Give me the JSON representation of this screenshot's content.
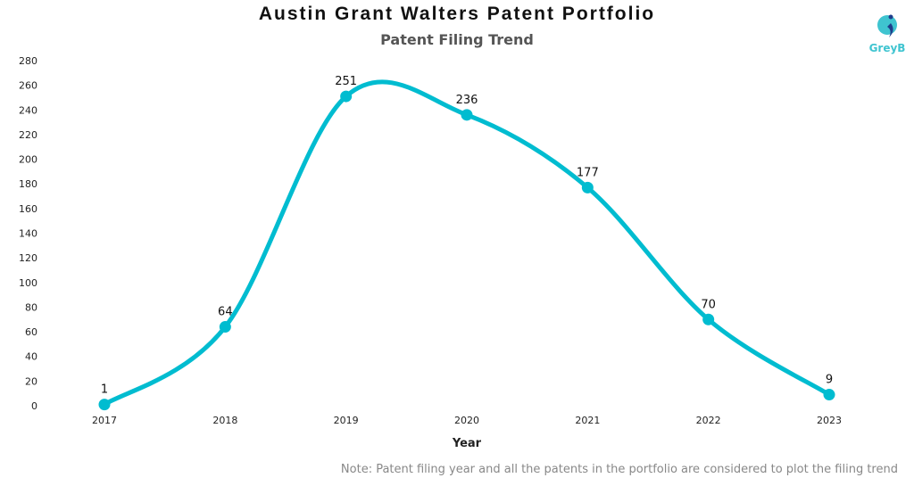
{
  "chart_data": {
    "type": "line",
    "title": "Austin Grant Walters Patent Portfolio",
    "subtitle": "Patent Filing Trend",
    "xlabel": "Year",
    "ylabel": "",
    "categories": [
      "2017",
      "2018",
      "2019",
      "2020",
      "2021",
      "2022",
      "2023"
    ],
    "values": [
      1,
      64,
      251,
      236,
      177,
      70,
      9
    ],
    "ylim": [
      0,
      280
    ],
    "yticks": [
      0,
      20,
      40,
      60,
      80,
      100,
      120,
      140,
      160,
      180,
      200,
      220,
      240,
      260,
      280
    ],
    "grid": false,
    "smooth": true,
    "color": "#00BCD0"
  },
  "note": "Note: Patent filing year and all the patents in the portfolio are considered to plot the filing trend",
  "logo": {
    "text": "GreyB",
    "colors": [
      "#3FC4D0",
      "#1F3E8C"
    ]
  }
}
